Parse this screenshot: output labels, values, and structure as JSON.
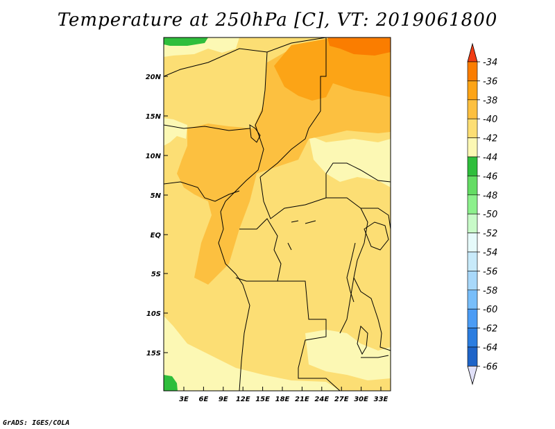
{
  "title": "Temperature at 250hPa [C], VT: 2019061800",
  "credit": "GrADS: IGES/COLA",
  "map": {
    "y_ticks": [
      "20N",
      "15N",
      "10N",
      "5N",
      "EQ",
      "5S",
      "10S",
      "15S"
    ],
    "x_ticks": [
      "3E",
      "6E",
      "9E",
      "12E",
      "15E",
      "18E",
      "21E",
      "24E",
      "27E",
      "30E",
      "33E"
    ]
  },
  "colorbar": {
    "labels": [
      "-34",
      "-36",
      "-38",
      "-40",
      "-42",
      "-44",
      "-46",
      "-48",
      "-50",
      "-52",
      "-54",
      "-56",
      "-58",
      "-60",
      "-62",
      "-64",
      "-66"
    ],
    "colors": [
      "#f0501e",
      "#fa7d00",
      "#fca416",
      "#fcc040",
      "#fcde74",
      "#fcf8b4",
      "#2fbe3c",
      "#64dc64",
      "#8cf08c",
      "#c8fac8",
      "#e6fafa",
      "#c8eafa",
      "#a8d8fa",
      "#78befa",
      "#4b9cf5",
      "#2b7de0",
      "#1e64c8",
      "#1446a0",
      "#0a1e78"
    ],
    "top_color": "#f03c14",
    "bottom_color": "#e0e0f8"
  }
}
